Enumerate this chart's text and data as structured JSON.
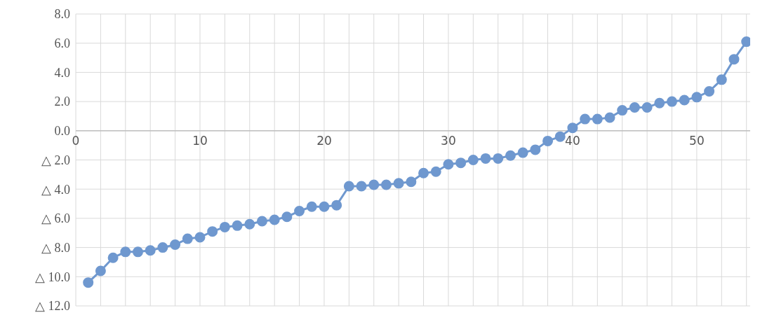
{
  "chart_data": {
    "type": "line",
    "x": [
      1,
      2,
      3,
      4,
      5,
      6,
      7,
      8,
      9,
      10,
      11,
      12,
      13,
      14,
      15,
      16,
      17,
      18,
      19,
      20,
      21,
      22,
      23,
      24,
      25,
      26,
      27,
      28,
      29,
      30,
      31,
      32,
      33,
      34,
      35,
      36,
      37,
      38,
      39,
      40,
      41,
      42,
      43,
      44,
      45,
      46,
      47,
      48,
      49,
      50,
      51,
      52,
      53,
      54
    ],
    "values": [
      -10.4,
      -9.6,
      -8.7,
      -8.3,
      -8.3,
      -8.2,
      -8.0,
      -7.8,
      -7.4,
      -7.3,
      -6.9,
      -6.6,
      -6.5,
      -6.4,
      -6.2,
      -6.1,
      -5.9,
      -5.5,
      -5.2,
      -5.2,
      -5.1,
      -3.8,
      -3.8,
      -3.7,
      -3.7,
      -3.6,
      -3.5,
      -2.9,
      -2.8,
      -2.3,
      -2.2,
      -2.0,
      -1.9,
      -1.9,
      -1.7,
      -1.5,
      -1.3,
      -0.7,
      -0.4,
      0.2,
      0.8,
      0.8,
      0.9,
      1.4,
      1.6,
      1.6,
      1.9,
      2.0,
      2.1,
      2.3,
      2.7,
      3.5,
      4.9,
      6.1
    ],
    "color": "#6f98cf",
    "marker": "circle",
    "grid": true,
    "xlim": [
      0,
      54.3
    ],
    "xticks": [
      0,
      {
        "value": 2,
        "label": null
      },
      {
        "value": 4,
        "label": null
      },
      {
        "value": 6,
        "label": null
      },
      {
        "value": 8,
        "label": null
      },
      10,
      {
        "value": 12,
        "label": null
      },
      {
        "value": 14,
        "label": null
      },
      {
        "value": 16,
        "label": null
      },
      {
        "value": 18,
        "label": null
      },
      20,
      {
        "value": 22,
        "label": null
      },
      {
        "value": 24,
        "label": null
      },
      {
        "value": 26,
        "label": null
      },
      {
        "value": 28,
        "label": null
      },
      30,
      {
        "value": 32,
        "label": null
      },
      {
        "value": 34,
        "label": null
      },
      {
        "value": 36,
        "label": null
      },
      {
        "value": 38,
        "label": null
      },
      40,
      {
        "value": 42,
        "label": null
      },
      {
        "value": 44,
        "label": null
      },
      {
        "value": 46,
        "label": null
      },
      {
        "value": 48,
        "label": null
      },
      50,
      {
        "value": 52,
        "label": null
      },
      {
        "value": 54,
        "label": null
      }
    ],
    "ylim": [
      -12,
      8
    ],
    "yticks": [
      {
        "value": 8,
        "label": "8.0"
      },
      {
        "value": 6,
        "label": "6.0"
      },
      {
        "value": 4,
        "label": "4.0"
      },
      {
        "value": 2,
        "label": "2.0"
      },
      {
        "value": 0,
        "label": "0.0"
      },
      {
        "value": -2,
        "label": "△ 2.0"
      },
      {
        "value": -4,
        "label": "△ 4.0"
      },
      {
        "value": -6,
        "label": "△ 6.0"
      },
      {
        "value": -8,
        "label": "△ 8.0"
      },
      {
        "value": -10,
        "label": "△ 10.0"
      },
      {
        "value": -12,
        "label": "△ 12.0"
      }
    ]
  }
}
